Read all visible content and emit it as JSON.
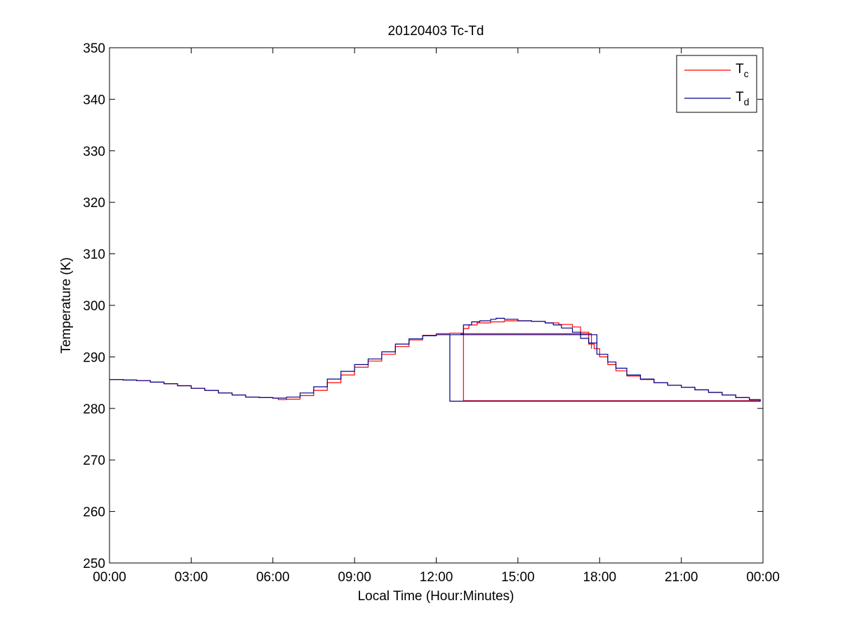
{
  "chart_data": {
    "type": "line",
    "title": "20120403 Tc-Td",
    "xlabel": "Local Time (Hour:Minutes)",
    "ylabel": "Temperature (K)",
    "xlim": [
      0,
      24
    ],
    "ylim": [
      250,
      350
    ],
    "x_ticks": [
      {
        "value": 0,
        "label": "00:00"
      },
      {
        "value": 3,
        "label": "03:00"
      },
      {
        "value": 6,
        "label": "06:00"
      },
      {
        "value": 9,
        "label": "09:00"
      },
      {
        "value": 12,
        "label": "12:00"
      },
      {
        "value": 15,
        "label": "15:00"
      },
      {
        "value": 18,
        "label": "18:00"
      },
      {
        "value": 21,
        "label": "21:00"
      },
      {
        "value": 24,
        "label": "00:00"
      }
    ],
    "y_ticks": [
      {
        "value": 250,
        "label": "250"
      },
      {
        "value": 260,
        "label": "260"
      },
      {
        "value": 270,
        "label": "270"
      },
      {
        "value": 280,
        "label": "280"
      },
      {
        "value": 290,
        "label": "290"
      },
      {
        "value": 300,
        "label": "300"
      },
      {
        "value": 310,
        "label": "310"
      },
      {
        "value": 320,
        "label": "320"
      },
      {
        "value": 330,
        "label": "330"
      },
      {
        "value": 340,
        "label": "340"
      },
      {
        "value": 350,
        "label": "350"
      }
    ],
    "grid": false,
    "legend": {
      "placement": "top-right",
      "entries": [
        {
          "base": "T",
          "sub": "c",
          "color": "#ff0000"
        },
        {
          "base": "T",
          "sub": "d",
          "color": "#00008b"
        }
      ]
    },
    "series": [
      {
        "color": "#ff0000",
        "x": [
          0,
          0.5,
          1,
          1.5,
          2,
          2.5,
          3,
          3.5,
          4,
          4.5,
          5,
          5.5,
          6,
          6.2,
          6.5,
          7,
          7.5,
          8,
          8.5,
          9,
          9.5,
          10,
          10.5,
          11,
          11.5,
          12,
          12.5,
          12.9,
          13.0,
          13.2,
          13.5,
          14,
          14.5,
          15,
          15.5,
          16,
          16.5,
          17,
          17.3,
          17.6,
          17.8,
          18,
          18.3,
          18.6,
          19,
          19.5,
          20,
          20.5,
          21,
          21.5,
          22,
          22.5,
          23,
          23.5,
          23.9,
          13.0,
          17.7
        ],
        "y": [
          285.6,
          285.5,
          285.4,
          285.1,
          284.8,
          284.4,
          283.9,
          283.5,
          283,
          282.6,
          282.2,
          282.1,
          282,
          281.7,
          281.8,
          282.5,
          283.5,
          285,
          286.5,
          288,
          289.2,
          290.5,
          292,
          293.3,
          294.2,
          294.5,
          294.6,
          294.6,
          295.5,
          296.2,
          296.6,
          296.8,
          297,
          297,
          296.9,
          296.6,
          296.3,
          295.8,
          294.8,
          292.5,
          291.6,
          290,
          288.5,
          287.3,
          286.3,
          285.6,
          285,
          284.5,
          284.1,
          283.6,
          283.1,
          282.6,
          282.1,
          281.7,
          281.5,
          294.5,
          291.6
        ]
      },
      {
        "color": "#00008b",
        "x": [
          0,
          0.5,
          1,
          1.5,
          2,
          2.5,
          3,
          3.5,
          4,
          4.5,
          5,
          5.5,
          6,
          6.2,
          6.5,
          7,
          7.5,
          8,
          8.5,
          9,
          9.5,
          10,
          10.5,
          11,
          11.5,
          12,
          12.5,
          12.9,
          13.0,
          13.3,
          13.6,
          14,
          14.2,
          14.5,
          15,
          15.5,
          16,
          16.3,
          16.6,
          17,
          17.3,
          17.6,
          17.9,
          18.3,
          18.6,
          19,
          19.5,
          20,
          20.5,
          21,
          21.5,
          22,
          22.5,
          23,
          23.5,
          23.9,
          12.5,
          17.9
        ],
        "y": [
          285.6,
          285.5,
          285.4,
          285.1,
          284.8,
          284.4,
          283.9,
          283.5,
          283,
          282.6,
          282.2,
          282.1,
          282,
          282,
          282.2,
          283,
          284.2,
          285.7,
          287.2,
          288.5,
          289.6,
          291,
          292.5,
          293.5,
          294.1,
          294.3,
          294.3,
          294.4,
          296.2,
          296.8,
          297,
          297.3,
          297.5,
          297.3,
          297,
          296.9,
          296.6,
          296.2,
          295.6,
          294.8,
          293.6,
          292.7,
          290.5,
          289,
          287.8,
          286.5,
          285.7,
          285,
          284.5,
          284.1,
          283.6,
          283.1,
          282.6,
          282.1,
          281.7,
          281.4,
          294.3,
          291.4
        ]
      }
    ]
  }
}
